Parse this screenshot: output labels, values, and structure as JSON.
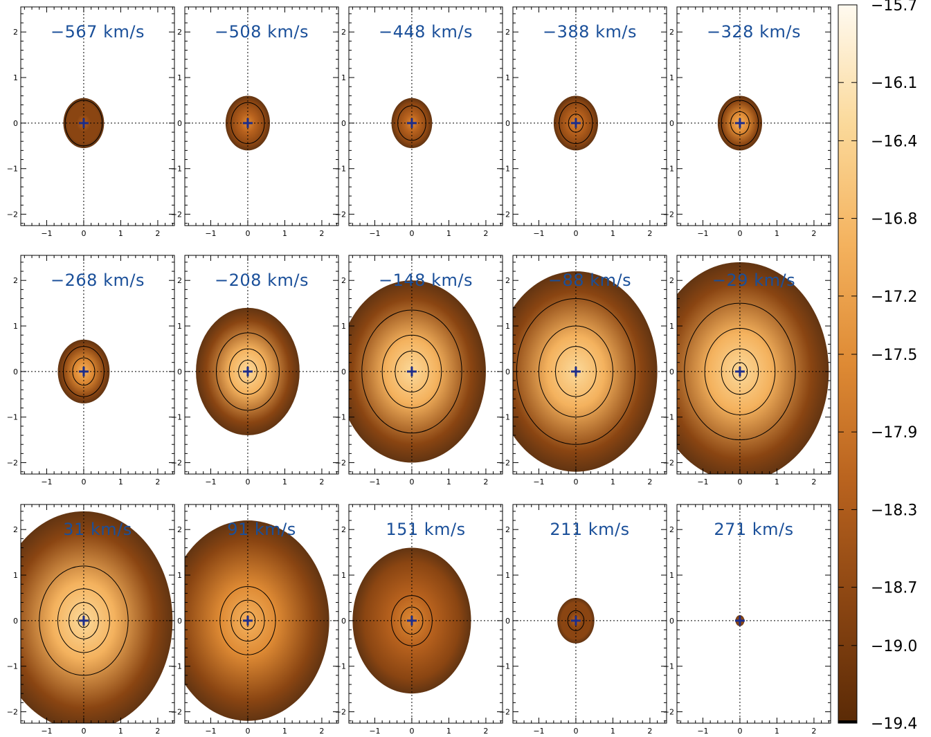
{
  "chart_data": {
    "type": "heatmap",
    "layout": "3x5 panel grid of velocity channel maps with shared colorbar",
    "xlim": [
      -1.7,
      2.45
    ],
    "ylim": [
      -2.25,
      2.55
    ],
    "x_ticks": [
      -1,
      0,
      1,
      2
    ],
    "x_tick_labels": [
      "−1",
      "0",
      "1",
      "2"
    ],
    "y_ticks": [
      -2,
      -1,
      0,
      1,
      2
    ],
    "y_tick_labels": [
      "−2",
      "−1",
      "0",
      "1",
      "2"
    ],
    "center_marker": {
      "x": 0,
      "y": 0,
      "symbol": "+"
    },
    "guide_lines": {
      "x": 0,
      "y": 0,
      "style": "dotted"
    },
    "colorbar": {
      "range": [
        -19.4,
        -15.7
      ],
      "tick_values": [
        -15.7,
        -16.1,
        -16.4,
        -16.8,
        -17.2,
        -17.5,
        -17.9,
        -18.3,
        -18.7,
        -19.0,
        -19.4
      ],
      "tick_labels": [
        "−15.7",
        "−16.1",
        "−16.4",
        "−16.8",
        "−17.2",
        "−17.5",
        "−17.9",
        "−18.3",
        "−18.7",
        "−19.0",
        "−19.4"
      ],
      "colors": [
        "#5a2a06",
        "#8a4512",
        "#b8621e",
        "#de8a34",
        "#f4b25e",
        "#fbd99a",
        "#fffaf0"
      ]
    },
    "panels": [
      {
        "label": "−567 km/s",
        "velocity": -567,
        "peak": -17.9,
        "radius": 0.45,
        "extent": 0.55,
        "contours": [
          0.5
        ]
      },
      {
        "label": "−508 km/s",
        "velocity": -508,
        "peak": -17.8,
        "radius": 0.45,
        "extent": 0.6,
        "contours": [
          0.45
        ]
      },
      {
        "label": "−448 km/s",
        "velocity": -448,
        "peak": -17.6,
        "radius": 0.45,
        "extent": 0.55,
        "contours": [
          0.38
        ]
      },
      {
        "label": "−388 km/s",
        "velocity": -388,
        "peak": -17.4,
        "radius": 0.45,
        "extent": 0.6,
        "contours": [
          0.45,
          0.2
        ]
      },
      {
        "label": "−328 km/s",
        "velocity": -328,
        "peak": -17.2,
        "radius": 0.55,
        "extent": 0.6,
        "contours": [
          0.5,
          0.25
        ]
      },
      {
        "label": "−268 km/s",
        "velocity": -268,
        "peak": -17.0,
        "radius": 0.6,
        "extent": 0.7,
        "contours": [
          0.55,
          0.3
        ]
      },
      {
        "label": "−208 km/s",
        "velocity": -208,
        "peak": -16.6,
        "radius": 0.9,
        "extent": 1.4,
        "contours": [
          0.85,
          0.5,
          0.25
        ]
      },
      {
        "label": "−148 km/s",
        "velocity": -148,
        "peak": -16.3,
        "radius": 1.3,
        "extent": 2.0,
        "contours": [
          1.35,
          0.8,
          0.45
        ]
      },
      {
        "label": "−88 km/s",
        "velocity": -88,
        "peak": -16.1,
        "radius": 1.4,
        "extent": 2.2,
        "contours": [
          1.6,
          1.0,
          0.55
        ]
      },
      {
        "label": "−29 km/s",
        "velocity": -29,
        "peak": -16.0,
        "radius": 1.5,
        "extent": 2.4,
        "contours": [
          1.5,
          0.95,
          0.5,
          0.2
        ]
      },
      {
        "label": "31 km/s",
        "velocity": 31,
        "peak": -16.2,
        "radius": 1.5,
        "extent": 2.4,
        "contours": [
          1.2,
          0.7,
          0.4,
          0.15
        ]
      },
      {
        "label": "91 km/s",
        "velocity": 91,
        "peak": -16.8,
        "radius": 1.3,
        "extent": 2.2,
        "contours": [
          0.75,
          0.45,
          0.2
        ]
      },
      {
        "label": "151 km/s",
        "velocity": 151,
        "peak": -17.5,
        "radius": 0.9,
        "extent": 1.6,
        "contours": [
          0.55,
          0.3
        ]
      },
      {
        "label": "211 km/s",
        "velocity": 211,
        "peak": -18.3,
        "radius": 0.35,
        "extent": 0.5,
        "contours": [
          0.22
        ]
      },
      {
        "label": "271 km/s",
        "velocity": 271,
        "peak": -19.0,
        "radius": 0.1,
        "extent": 0.12,
        "contours": []
      }
    ]
  }
}
